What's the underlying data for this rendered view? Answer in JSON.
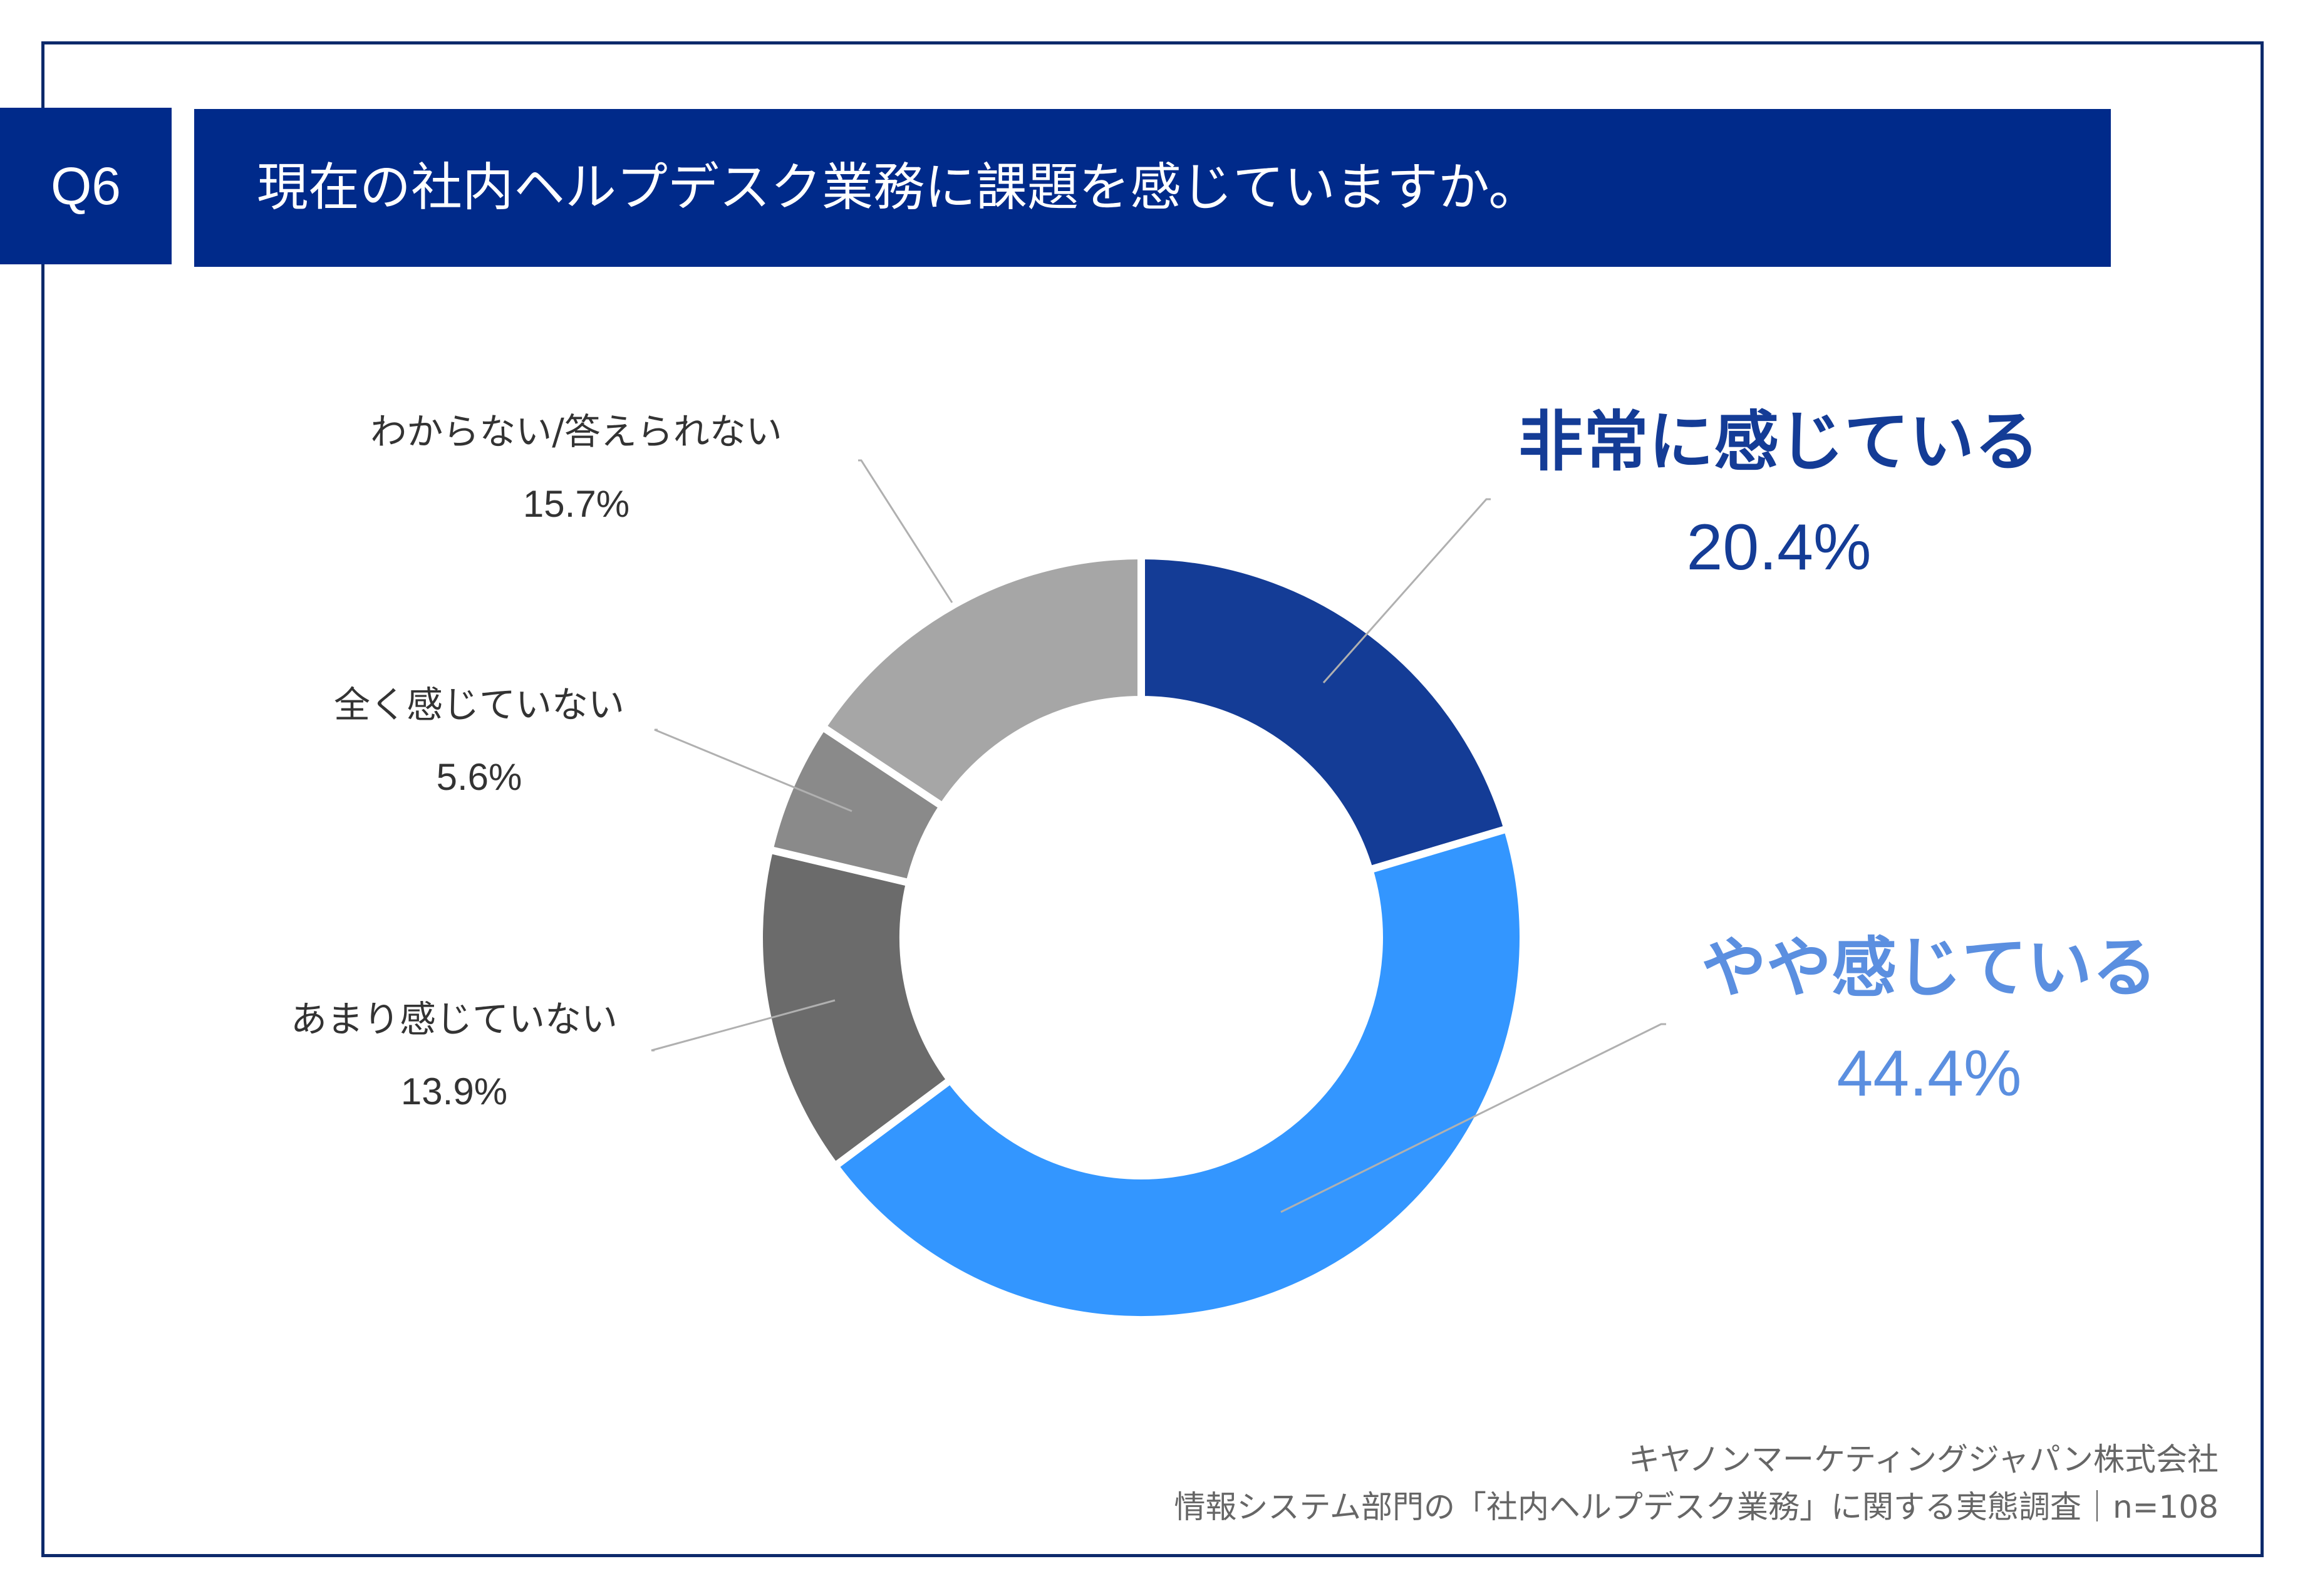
{
  "header": {
    "badge": "Q6",
    "question": "現在の社内ヘルプデスク業務に課題を感じていますか。"
  },
  "chart_data": {
    "type": "pie",
    "variant": "donut",
    "title": "現在の社内ヘルプデスク業務に課題を感じていますか。",
    "n": 108,
    "slices": [
      {
        "label": "非常に感じている",
        "value": 20.4,
        "value_label": "20.4%",
        "color": "#143c96"
      },
      {
        "label": "やや感じている",
        "value": 44.4,
        "value_label": "44.4%",
        "color": "#3396ff"
      },
      {
        "label": "あまり感じていない",
        "value": 13.9,
        "value_label": "13.9%",
        "color": "#6b6b6b"
      },
      {
        "label": "全く感じていない",
        "value": 5.6,
        "value_label": "5.6%",
        "color": "#8a8a8a"
      },
      {
        "label": "わからない/答えられない",
        "value": 15.7,
        "value_label": "15.7%",
        "color": "#a6a6a6"
      }
    ],
    "label_colors": {
      "非常に感じている": "#143c96",
      "やや感じている": "#5b8fe0",
      "others": "#333333"
    }
  },
  "footer": {
    "company": "キヤノンマーケティングジャパン株式会社",
    "source": "情報システム部門の「社内ヘルプデスク業務」に関する実態調査｜n=108"
  }
}
